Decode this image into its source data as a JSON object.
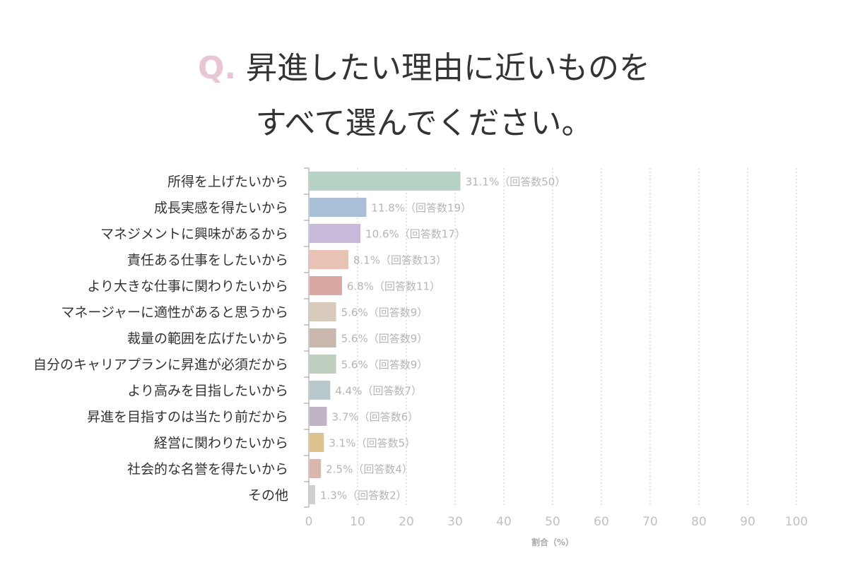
{
  "title": {
    "q_mark": "Q.",
    "line1": "昇進したい理由に近いものを",
    "line2": "すべて選んでください。"
  },
  "chart_data": {
    "type": "bar",
    "orientation": "horizontal",
    "categories": [
      "所得を上げたいから",
      "成長実感を得たいから",
      "マネジメントに興味があるから",
      "責任ある仕事をしたいから",
      "より大きな仕事に関わりたいから",
      "マネージャーに適性があると思うから",
      "裁量の範囲を広げたいから",
      "自分のキャリアプランに昇進が必須だから",
      "より高みを目指したいから",
      "昇進を目指すのは当たり前だから",
      "経営に関わりたいから",
      "社会的な名誉を得たいから",
      "その他"
    ],
    "values": [
      31.1,
      11.8,
      10.6,
      8.1,
      6.8,
      5.6,
      5.6,
      5.6,
      4.4,
      3.7,
      3.1,
      2.5,
      1.3
    ],
    "data_labels": [
      "31.1%（回答数50）",
      "11.8%（回答数19）",
      "10.6%（回答数17）",
      "8.1%（回答数13）",
      "6.8%（回答数11）",
      "5.6%（回答数9）",
      "5.6%（回答数9）",
      "5.6%（回答数9）",
      "4.4%（回答数7）",
      "3.7%（回答数6）",
      "3.1%（回答数5）",
      "2.5%（回答数4）",
      "1.3%（回答数2）"
    ],
    "colors": [
      "#b7d3c6",
      "#a9bfd7",
      "#c8b9db",
      "#e8c2b5",
      "#d9a8a2",
      "#d8cbbb",
      "#c9b7ad",
      "#c0cfc0",
      "#b9c8cc",
      "#c0b5c7",
      "#ddc48f",
      "#dbb5b0",
      "#cfcfcf"
    ],
    "xlabel": "割合（%）",
    "xlim": [
      0,
      100
    ],
    "xticks": [
      0,
      10,
      20,
      30,
      40,
      50,
      60,
      70,
      80,
      90,
      100
    ],
    "grid": true
  }
}
